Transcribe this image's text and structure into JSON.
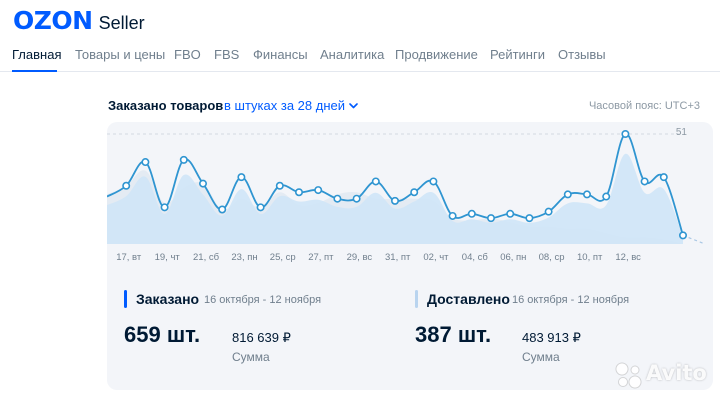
{
  "header": {
    "logo_brand": "OZON",
    "logo_product": "Seller"
  },
  "nav": {
    "items": [
      {
        "label": "Главная",
        "active": true
      },
      {
        "label": "Товары и цены",
        "active": false
      },
      {
        "label": "FBO",
        "active": false
      },
      {
        "label": "FBS",
        "active": false
      },
      {
        "label": "Финансы",
        "active": false
      },
      {
        "label": "Аналитика",
        "active": false
      },
      {
        "label": "Продвижение",
        "active": false
      },
      {
        "label": "Рейтинги",
        "active": false
      },
      {
        "label": "Отзывы",
        "active": false
      }
    ]
  },
  "chart_header": {
    "title": "Заказано товаров",
    "period_selector": "в штуках за 28 дней",
    "timezone": "Часовой пояс: UTC+3"
  },
  "chart_data": {
    "type": "line",
    "title": "Заказано товаров",
    "xlabel": "",
    "ylabel": "",
    "ylim": [
      0,
      51
    ],
    "y_max_label": "51",
    "grid": false,
    "x_tick_labels": [
      "17, вт",
      "19, чт",
      "21, сб",
      "23, пн",
      "25, ср",
      "27, пт",
      "29, вс",
      "31, пт",
      "02, чт",
      "04, сб",
      "06, пн",
      "08, ср",
      "10, пт",
      "12, вс"
    ],
    "series": [
      {
        "values": [
          22,
          27,
          38,
          17,
          39,
          28,
          16,
          31,
          17,
          27,
          24,
          25,
          21,
          21,
          29,
          20,
          24,
          29,
          13,
          14,
          12,
          14,
          12,
          15,
          23,
          23,
          22,
          51,
          29,
          31,
          4
        ]
      }
    ],
    "background_area": [
      23,
      27,
      34,
      19,
      26,
      28,
      16,
      21,
      17,
      24,
      18,
      19,
      23,
      24,
      21,
      21,
      21,
      20,
      12,
      11,
      12,
      10,
      8,
      8,
      7,
      7,
      5,
      3,
      3,
      2,
      0
    ],
    "colors": {
      "line": "#2f95d1",
      "area": "#cfe6f7",
      "bg_area": "#e4ebf3"
    }
  },
  "summary": {
    "ordered": {
      "label": "Заказано",
      "period": "16 октября - 12 ноября",
      "count": "659 шт.",
      "sum": "816 639 ₽",
      "sum_label": "Сумма",
      "accent": "#005bff"
    },
    "delivered": {
      "label": "Доставлено",
      "period": "16 октября - 12 ноября",
      "count": "387 шт.",
      "sum": "483 913 ₽",
      "sum_label": "Сумма",
      "accent": "#b9d4ef"
    }
  },
  "watermark": {
    "text": "Avito"
  }
}
